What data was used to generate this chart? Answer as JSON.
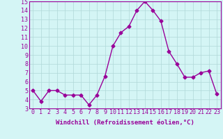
{
  "x": [
    0,
    1,
    2,
    3,
    4,
    5,
    6,
    7,
    8,
    9,
    10,
    11,
    12,
    13,
    14,
    15,
    16,
    17,
    18,
    19,
    20,
    21,
    22,
    23
  ],
  "y": [
    5.0,
    3.8,
    5.0,
    5.0,
    4.5,
    4.5,
    4.5,
    3.4,
    4.5,
    6.6,
    10.0,
    11.5,
    12.2,
    14.0,
    15.0,
    14.0,
    12.8,
    9.4,
    8.0,
    6.5,
    6.5,
    7.0,
    7.2,
    4.6
  ],
  "line_color": "#990099",
  "marker": "D",
  "marker_size": 2.5,
  "linewidth": 1.0,
  "bg_color": "#d4f5f5",
  "grid_color": "#b0d8d8",
  "xlabel": "Windchill (Refroidissement éolien,°C)",
  "xlabel_color": "#990099",
  "xlabel_fontsize": 6.5,
  "tick_color": "#990099",
  "tick_fontsize": 6.0,
  "ylim": [
    3,
    15
  ],
  "yticks": [
    3,
    4,
    5,
    6,
    7,
    8,
    9,
    10,
    11,
    12,
    13,
    14,
    15
  ],
  "xticks": [
    0,
    1,
    2,
    3,
    4,
    5,
    6,
    7,
    8,
    9,
    10,
    11,
    12,
    13,
    14,
    15,
    16,
    17,
    18,
    19,
    20,
    21,
    22,
    23
  ]
}
